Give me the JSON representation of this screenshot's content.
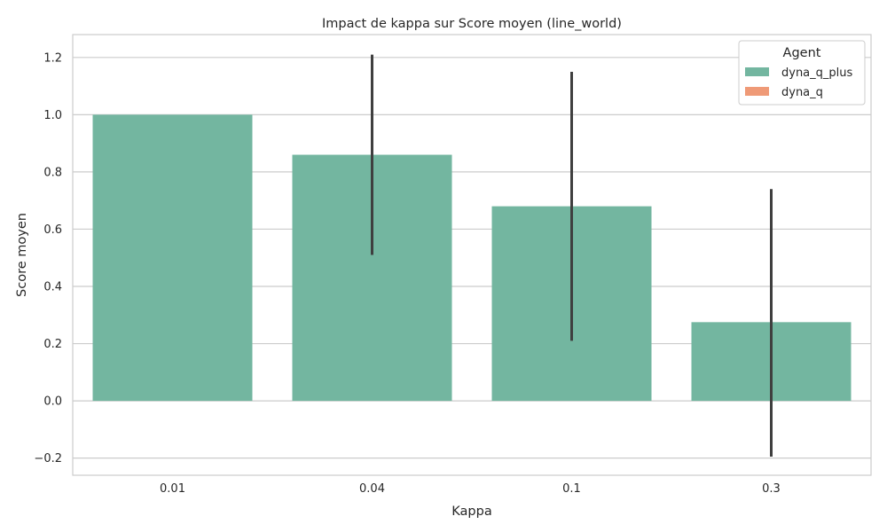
{
  "chart_data": {
    "type": "bar",
    "title": "Impact de kappa sur Score moyen (line_world)",
    "xlabel": "Kappa",
    "ylabel": "Score moyen",
    "categories": [
      "0.01",
      "0.04",
      "0.1",
      "0.3"
    ],
    "ylim": [
      -0.26,
      1.28
    ],
    "yticks": [
      -0.2,
      0.0,
      0.2,
      0.4,
      0.6,
      0.8,
      1.0,
      1.2
    ],
    "ytick_labels": [
      "−0.2",
      "0.0",
      "0.2",
      "0.4",
      "0.6",
      "0.8",
      "1.0",
      "1.2"
    ],
    "grid": true,
    "legend_position": "top-right",
    "legend_title": "Agent",
    "series": [
      {
        "name": "dyna_q_plus",
        "color": "#73b6a0",
        "values": [
          1.0,
          0.86,
          0.68,
          0.275
        ],
        "error_low": [
          1.0,
          0.51,
          0.21,
          -0.195
        ],
        "error_high": [
          1.0,
          1.21,
          1.15,
          0.74
        ]
      },
      {
        "name": "dyna_q",
        "color": "#ef9a77",
        "values": [
          null,
          null,
          null,
          null
        ]
      }
    ],
    "error_bar_color": "#3f3f3f"
  }
}
